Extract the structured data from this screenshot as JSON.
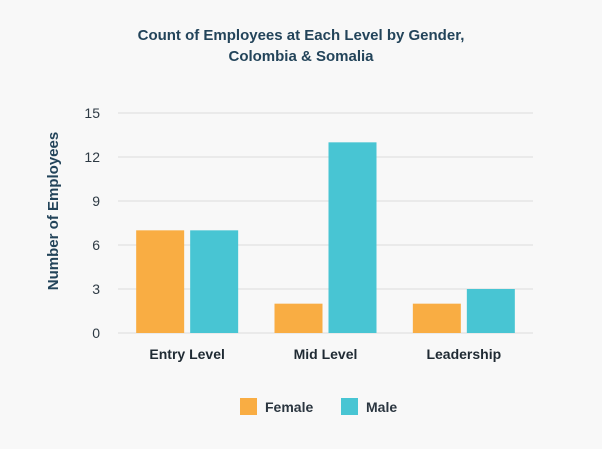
{
  "chart_data": {
    "type": "bar",
    "title_lines": [
      "Count of Employees at Each Level by Gender,",
      "Colombia & Somalia"
    ],
    "xlabel": "",
    "ylabel": "Number of Employees",
    "categories": [
      "Entry Level",
      "Mid Level",
      "Leadership"
    ],
    "series": [
      {
        "name": "Female",
        "color": "#f9ad43",
        "values": [
          7,
          2,
          2
        ]
      },
      {
        "name": "Male",
        "color": "#48c5d3",
        "values": [
          7,
          13,
          3
        ]
      }
    ],
    "ylim": [
      0,
      15
    ],
    "yticks": [
      "0",
      "3",
      "6",
      "9",
      "12",
      "15"
    ],
    "grid": true,
    "legend": "bottom-center"
  }
}
